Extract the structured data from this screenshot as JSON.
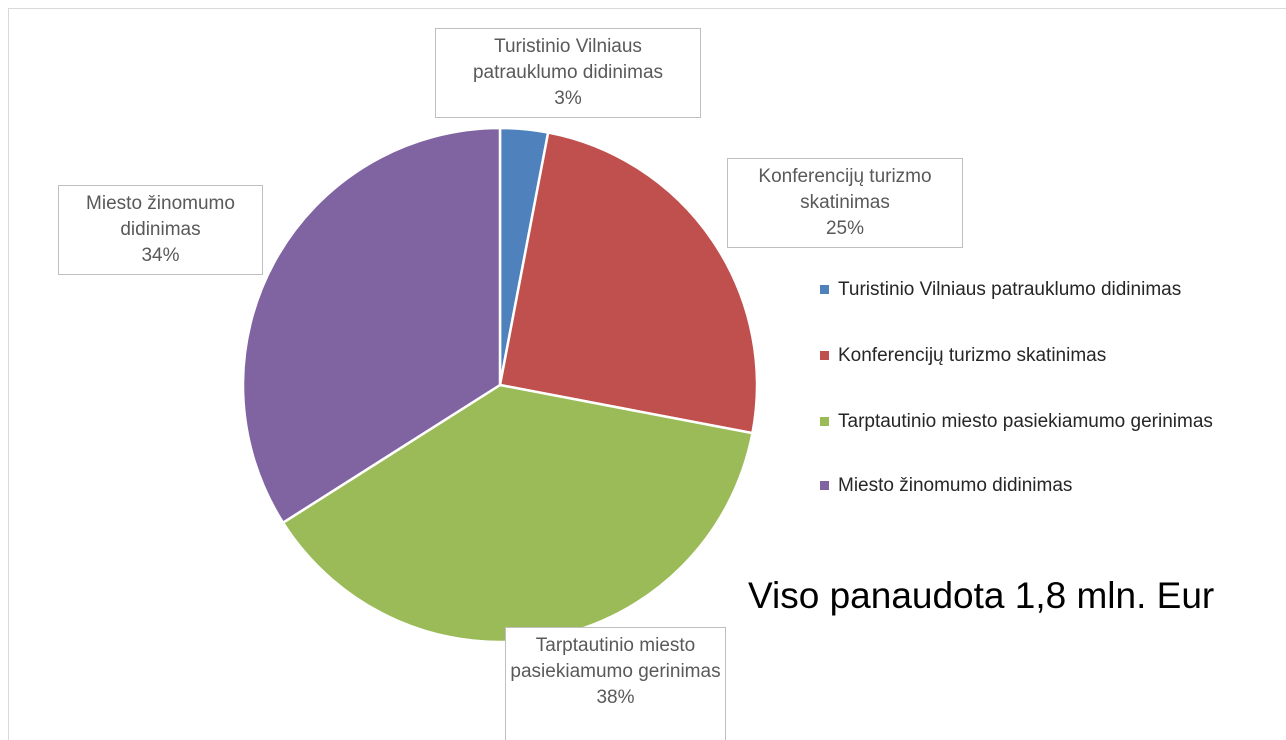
{
  "chart_data": {
    "type": "pie",
    "categories": [
      "Turistinio Vilniaus patrauklumo didinimas",
      "Konferencijų turizmo skatinimas",
      "Tarptautinio miesto pasiekiamumo gerinimas",
      "Miesto žinomumo didinimas"
    ],
    "values": [
      3,
      25,
      38,
      34
    ],
    "value_labels": [
      "3%",
      "25%",
      "38%",
      "34%"
    ],
    "colors": [
      "#4f81bd",
      "#c0504d",
      "#9bbb59",
      "#8064a2"
    ],
    "legend": "right",
    "annotation": "Viso panaudota 1,8 mln. Eur"
  }
}
